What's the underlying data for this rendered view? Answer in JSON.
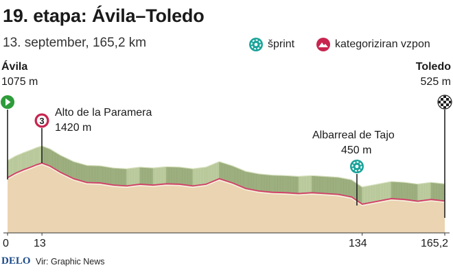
{
  "header": {
    "title": "19. etapa: Ávila–Toledo",
    "subtitle": "13. september, 165,2 km"
  },
  "legend": {
    "sprint_label": "šprint",
    "climb_label": "kategoriziran vzpon",
    "sprint_color": "#1aa39a",
    "climb_color": "#c8254f"
  },
  "start": {
    "name": "Ávila",
    "elevation": "1075 m",
    "icon": "start-flag-icon",
    "color": "#2e9c3a"
  },
  "finish": {
    "name": "Toledo",
    "elevation": "525 m",
    "icon": "checkered-flag-icon"
  },
  "climb": {
    "name": "Alto de la Paramera",
    "elevation": "1420 m",
    "category": "3"
  },
  "sprint": {
    "name": "Albarreal de Tajo",
    "elevation": "450 m"
  },
  "axis": {
    "ticks": [
      "0",
      "13",
      "134",
      "165,2"
    ]
  },
  "footer": {
    "brand": "DELO",
    "source": "Vir: Graphic News"
  },
  "chart_data": {
    "type": "area",
    "xlabel": "",
    "ylabel": "",
    "x_unit": "km",
    "y_unit": "m",
    "xlim": [
      0,
      165.2
    ],
    "x": [
      0,
      3,
      6,
      9,
      11,
      13,
      16,
      20,
      25,
      30,
      35,
      40,
      45,
      50,
      55,
      60,
      65,
      70,
      75,
      80,
      85,
      90,
      95,
      100,
      105,
      110,
      115,
      120,
      125,
      130,
      134,
      140,
      145,
      150,
      155,
      160,
      165.2
    ],
    "y": [
      1075,
      1180,
      1260,
      1330,
      1380,
      1420,
      1350,
      1200,
      1050,
      960,
      950,
      900,
      880,
      920,
      900,
      930,
      920,
      880,
      920,
      1050,
      950,
      820,
      760,
      730,
      720,
      700,
      720,
      700,
      680,
      620,
      450,
      520,
      580,
      560,
      520,
      560,
      525
    ]
  }
}
